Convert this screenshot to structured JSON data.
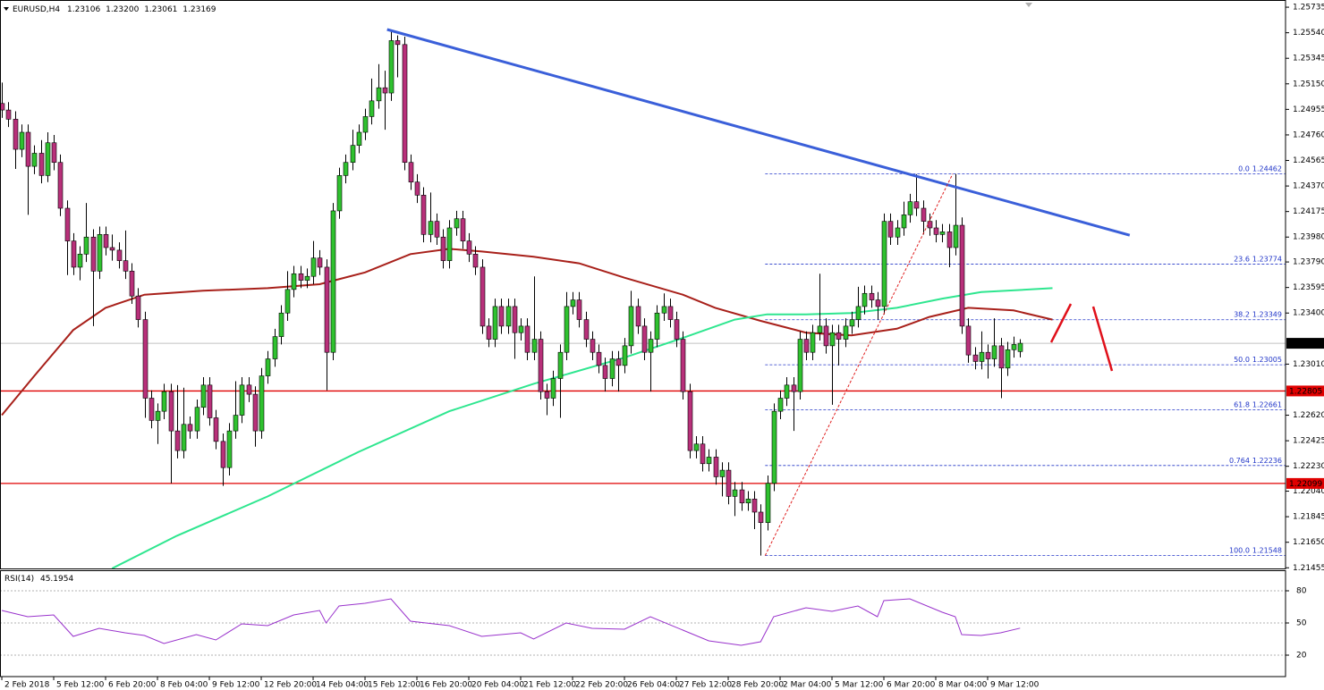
{
  "chart_data": {
    "type": "candlestick",
    "header": [
      "EURUSD,H4",
      "1.23106",
      "1.23200",
      "1.23061",
      "1.23169"
    ],
    "up_color": "#2fc12f",
    "down_color": "#b8307a",
    "xlim": [
      -0.28,
      197.93
    ],
    "ylim": [
      1.2145,
      1.2579
    ],
    "yticks": [
      1.25735,
      {
        "value": 1.2554,
        "label": "1.25540"
      },
      1.25345,
      {
        "value": 1.2515,
        "label": "1.25150"
      },
      1.24955,
      {
        "value": 1.2476,
        "label": "1.24760"
      },
      1.24565,
      {
        "value": 1.2437,
        "label": "1.24370"
      },
      1.24175,
      {
        "value": 1.2398,
        "label": "1.23980"
      },
      {
        "value": 1.2379,
        "label": "1.23790"
      },
      1.23595,
      {
        "value": 1.234,
        "label": "1.23400"
      },
      {
        "value": 1.2301,
        "label": "1.23010"
      },
      {
        "value": 1.2262,
        "label": "1.22620"
      },
      1.22425,
      {
        "value": 1.2223,
        "label": "1.22230"
      },
      {
        "value": 1.2204,
        "label": "1.22040"
      },
      1.21845,
      {
        "value": 1.2165,
        "label": "1.21650"
      },
      1.21455
    ],
    "xticks": [
      {
        "value": 0,
        "label": "2 Feb 2018"
      },
      {
        "value": 8,
        "label": "5 Feb 12:00"
      },
      {
        "value": 16,
        "label": "6 Feb 20:00"
      },
      {
        "value": 24,
        "label": "8 Feb 04:00"
      },
      {
        "value": 32,
        "label": "9 Feb 12:00"
      },
      {
        "value": 40,
        "label": "12 Feb 20:00"
      },
      {
        "value": 48,
        "label": "14 Feb 04:00"
      },
      {
        "value": 56,
        "label": "15 Feb 12:00"
      },
      {
        "value": 64,
        "label": "16 Feb 20:00"
      },
      {
        "value": 72,
        "label": "20 Feb 04:00"
      },
      {
        "value": 80,
        "label": "21 Feb 12:00"
      },
      {
        "value": 88,
        "label": "22 Feb 20:00"
      },
      {
        "value": 96,
        "label": "26 Feb 04:00"
      },
      {
        "value": 104,
        "label": "27 Feb 12:00"
      },
      {
        "value": 112,
        "label": "28 Feb 20:00"
      },
      {
        "value": 120,
        "label": "2 Mar 04:00"
      },
      {
        "value": 128,
        "label": "5 Mar 12:00"
      },
      {
        "value": 136,
        "label": "6 Mar 20:00"
      },
      {
        "value": 144,
        "label": "8 Mar 04:00"
      },
      {
        "value": 152,
        "label": "9 Mar 12:00"
      }
    ],
    "ohlc": [
      [
        1.25,
        1.2516,
        1.2489,
        1.2495
      ],
      [
        1.2495,
        1.2501,
        1.2482,
        1.2488
      ],
      [
        1.2488,
        1.2494,
        1.245,
        1.2465
      ],
      [
        1.2465,
        1.2484,
        1.2459,
        1.2478
      ],
      [
        1.2478,
        1.2484,
        1.2415,
        1.2452
      ],
      [
        1.2452,
        1.2468,
        1.2446,
        1.2462
      ],
      [
        1.2462,
        1.2472,
        1.2439,
        1.2445
      ],
      [
        1.2445,
        1.2478,
        1.244,
        1.247
      ],
      [
        1.247,
        1.2476,
        1.2449,
        1.2455
      ],
      [
        1.2455,
        1.2461,
        1.2414,
        1.242
      ],
      [
        1.242,
        1.2426,
        1.2369,
        1.2395
      ],
      [
        1.2395,
        1.2401,
        1.2369,
        1.2375
      ],
      [
        1.2375,
        1.2391,
        1.2365,
        1.2385
      ],
      [
        1.2385,
        1.2424,
        1.2379,
        1.2398
      ],
      [
        1.2398,
        1.2404,
        1.233,
        1.2372
      ],
      [
        1.2372,
        1.2406,
        1.2366,
        1.24
      ],
      [
        1.24,
        1.2406,
        1.2384,
        1.239
      ],
      [
        1.239,
        1.24,
        1.238,
        1.2388
      ],
      [
        1.2388,
        1.2394,
        1.2374,
        1.238
      ],
      [
        1.238,
        1.2403,
        1.2366,
        1.2372
      ],
      [
        1.2372,
        1.2378,
        1.2347,
        1.2353
      ],
      [
        1.2353,
        1.2359,
        1.2329,
        1.2335
      ],
      [
        1.2335,
        1.2341,
        1.226,
        1.2275
      ],
      [
        1.2275,
        1.2281,
        1.2252,
        1.2258
      ],
      [
        1.2258,
        1.2271,
        1.224,
        1.2265
      ],
      [
        1.2265,
        1.2286,
        1.2259,
        1.228
      ],
      [
        1.228,
        1.2286,
        1.221,
        1.225
      ],
      [
        1.225,
        1.2285,
        1.2229,
        1.2235
      ],
      [
        1.2235,
        1.2283,
        1.2229,
        1.2255
      ],
      [
        1.2255,
        1.2261,
        1.2244,
        1.225
      ],
      [
        1.225,
        1.2274,
        1.2244,
        1.2268
      ],
      [
        1.2268,
        1.2291,
        1.2262,
        1.2285
      ],
      [
        1.2285,
        1.2291,
        1.2254,
        1.226
      ],
      [
        1.226,
        1.2266,
        1.2236,
        1.2242
      ],
      [
        1.2242,
        1.2248,
        1.2208,
        1.2222
      ],
      [
        1.2222,
        1.2256,
        1.2216,
        1.225
      ],
      [
        1.225,
        1.2288,
        1.2244,
        1.2262
      ],
      [
        1.2262,
        1.2291,
        1.2256,
        1.2285
      ],
      [
        1.2285,
        1.2291,
        1.2272,
        1.2278
      ],
      [
        1.2278,
        1.2284,
        1.2238,
        1.225
      ],
      [
        1.225,
        1.2298,
        1.2244,
        1.2292
      ],
      [
        1.2292,
        1.2311,
        1.2286,
        1.2305
      ],
      [
        1.2305,
        1.2328,
        1.2299,
        1.2322
      ],
      [
        1.2322,
        1.2346,
        1.2316,
        1.234
      ],
      [
        1.234,
        1.2372,
        1.2334,
        1.2358
      ],
      [
        1.2358,
        1.2376,
        1.2352,
        1.237
      ],
      [
        1.237,
        1.2376,
        1.2359,
        1.2365
      ],
      [
        1.2365,
        1.2374,
        1.2359,
        1.2368
      ],
      [
        1.2368,
        1.2395,
        1.2362,
        1.2382
      ],
      [
        1.2382,
        1.2388,
        1.2369,
        1.2375
      ],
      [
        1.2375,
        1.2381,
        1.2281,
        1.231
      ],
      [
        1.231,
        1.2424,
        1.2304,
        1.2418
      ],
      [
        1.2418,
        1.2451,
        1.2412,
        1.2445
      ],
      [
        1.2445,
        1.2461,
        1.2439,
        1.2455
      ],
      [
        1.2455,
        1.248,
        1.2449,
        1.2468
      ],
      [
        1.2468,
        1.2484,
        1.2462,
        1.2478
      ],
      [
        1.2478,
        1.2496,
        1.2472,
        1.249
      ],
      [
        1.249,
        1.2519,
        1.2484,
        1.2502
      ],
      [
        1.2502,
        1.253,
        1.2496,
        1.2512
      ],
      [
        1.2512,
        1.2525,
        1.248,
        1.2508
      ],
      [
        1.2508,
        1.2556,
        1.2502,
        1.2548
      ],
      [
        1.2548,
        1.2552,
        1.252,
        1.2545
      ],
      [
        1.2545,
        1.2551,
        1.2449,
        1.2455
      ],
      [
        1.2455,
        1.2461,
        1.2434,
        1.244
      ],
      [
        1.244,
        1.2446,
        1.2424,
        1.243
      ],
      [
        1.243,
        1.2436,
        1.2394,
        1.24
      ],
      [
        1.24,
        1.2432,
        1.2394,
        1.241
      ],
      [
        1.241,
        1.2416,
        1.2392,
        1.2398
      ],
      [
        1.2398,
        1.2404,
        1.2374,
        1.238
      ],
      [
        1.238,
        1.2411,
        1.2374,
        1.2405
      ],
      [
        1.2405,
        1.2418,
        1.2399,
        1.2412
      ],
      [
        1.2412,
        1.2418,
        1.2389,
        1.2395
      ],
      [
        1.2395,
        1.2401,
        1.2379,
        1.2385
      ],
      [
        1.2385,
        1.2391,
        1.2369,
        1.2375
      ],
      [
        1.2375,
        1.2381,
        1.2324,
        1.233
      ],
      [
        1.233,
        1.2336,
        1.2314,
        1.232
      ],
      [
        1.232,
        1.2351,
        1.2314,
        1.2345
      ],
      [
        1.2345,
        1.2351,
        1.2324,
        1.233
      ],
      [
        1.233,
        1.2351,
        1.2324,
        1.2345
      ],
      [
        1.2345,
        1.2351,
        1.2305,
        1.2325
      ],
      [
        1.2325,
        1.2336,
        1.2319,
        1.233
      ],
      [
        1.233,
        1.2336,
        1.2304,
        1.231
      ],
      [
        1.231,
        1.2368,
        1.2304,
        1.232
      ],
      [
        1.232,
        1.2326,
        1.2274,
        1.228
      ],
      [
        1.228,
        1.2286,
        1.2262,
        1.2275
      ],
      [
        1.2275,
        1.2296,
        1.2269,
        1.229
      ],
      [
        1.229,
        1.2316,
        1.226,
        1.231
      ],
      [
        1.231,
        1.2356,
        1.2304,
        1.2345
      ],
      [
        1.2345,
        1.2356,
        1.2339,
        1.235
      ],
      [
        1.235,
        1.2356,
        1.2329,
        1.2335
      ],
      [
        1.2335,
        1.2341,
        1.2314,
        1.232
      ],
      [
        1.232,
        1.2326,
        1.2304,
        1.231
      ],
      [
        1.231,
        1.2316,
        1.2294,
        1.23
      ],
      [
        1.23,
        1.2306,
        1.228,
        1.229
      ],
      [
        1.229,
        1.2311,
        1.2284,
        1.2305
      ],
      [
        1.2305,
        1.2311,
        1.228,
        1.23
      ],
      [
        1.23,
        1.2321,
        1.2294,
        1.2315
      ],
      [
        1.2315,
        1.2357,
        1.2309,
        1.2345
      ],
      [
        1.2345,
        1.2351,
        1.2324,
        1.233
      ],
      [
        1.233,
        1.2336,
        1.2304,
        1.231
      ],
      [
        1.231,
        1.2326,
        1.228,
        1.232
      ],
      [
        1.232,
        1.2346,
        1.2314,
        1.234
      ],
      [
        1.234,
        1.2355,
        1.2334,
        1.2345
      ],
      [
        1.2345,
        1.2351,
        1.2329,
        1.2335
      ],
      [
        1.2335,
        1.2341,
        1.2314,
        1.232
      ],
      [
        1.232,
        1.2326,
        1.2274,
        1.228
      ],
      [
        1.228,
        1.2286,
        1.2229,
        1.2235
      ],
      [
        1.2235,
        1.2246,
        1.2229,
        1.224
      ],
      [
        1.224,
        1.2246,
        1.2219,
        1.2225
      ],
      [
        1.2225,
        1.2236,
        1.2219,
        1.223
      ],
      [
        1.223,
        1.2236,
        1.2209,
        1.2215
      ],
      [
        1.2215,
        1.2226,
        1.22,
        1.222
      ],
      [
        1.222,
        1.2226,
        1.2194,
        1.22
      ],
      [
        1.22,
        1.2211,
        1.2185,
        1.2205
      ],
      [
        1.2205,
        1.2211,
        1.2189,
        1.2195
      ],
      [
        1.2195,
        1.2204,
        1.2189,
        1.2198
      ],
      [
        1.2198,
        1.2204,
        1.2175,
        1.2188
      ],
      [
        1.2188,
        1.2194,
        1.21548,
        1.218
      ],
      [
        1.218,
        1.2216,
        1.2174,
        1.221
      ],
      [
        1.221,
        1.2271,
        1.2204,
        1.2265
      ],
      [
        1.2265,
        1.2281,
        1.2259,
        1.2275
      ],
      [
        1.2275,
        1.2291,
        1.2269,
        1.2285
      ],
      [
        1.2285,
        1.2291,
        1.225,
        1.228
      ],
      [
        1.228,
        1.2326,
        1.2274,
        1.232
      ],
      [
        1.232,
        1.2326,
        1.2304,
        1.231
      ],
      [
        1.231,
        1.2331,
        1.2304,
        1.2325
      ],
      [
        1.2325,
        1.237,
        1.2319,
        1.233
      ],
      [
        1.233,
        1.2336,
        1.2309,
        1.2315
      ],
      [
        1.2315,
        1.2331,
        1.227,
        1.2325
      ],
      [
        1.2325,
        1.2331,
        1.23,
        1.232
      ],
      [
        1.232,
        1.2336,
        1.2314,
        1.233
      ],
      [
        1.233,
        1.2341,
        1.2324,
        1.2335
      ],
      [
        1.2335,
        1.236,
        1.2329,
        1.2345
      ],
      [
        1.2345,
        1.2361,
        1.2339,
        1.2355
      ],
      [
        1.2355,
        1.2361,
        1.2344,
        1.235
      ],
      [
        1.235,
        1.2356,
        1.2335,
        1.2345
      ],
      [
        1.2345,
        1.2416,
        1.2339,
        1.241
      ],
      [
        1.241,
        1.2416,
        1.2392,
        1.2398
      ],
      [
        1.2398,
        1.2411,
        1.2392,
        1.2405
      ],
      [
        1.2405,
        1.2425,
        1.2399,
        1.2415
      ],
      [
        1.2415,
        1.2431,
        1.2409,
        1.2425
      ],
      [
        1.2425,
        1.2446,
        1.2414,
        1.242
      ],
      [
        1.242,
        1.2426,
        1.24,
        1.241
      ],
      [
        1.241,
        1.2416,
        1.2399,
        1.2405
      ],
      [
        1.2405,
        1.2411,
        1.2394,
        1.24
      ],
      [
        1.24,
        1.2408,
        1.2394,
        1.2402
      ],
      [
        1.2402,
        1.2408,
        1.2375,
        1.239
      ],
      [
        1.239,
        1.24462,
        1.2384,
        1.2407
      ],
      [
        1.2407,
        1.2413,
        1.2324,
        1.233
      ],
      [
        1.233,
        1.2336,
        1.2302,
        1.2308
      ],
      [
        1.2308,
        1.2314,
        1.2297,
        1.2303
      ],
      [
        1.2303,
        1.2326,
        1.2297,
        1.231
      ],
      [
        1.231,
        1.2316,
        1.229,
        1.2305
      ],
      [
        1.2305,
        1.2336,
        1.2299,
        1.2315
      ],
      [
        1.2315,
        1.2321,
        1.2275,
        1.2298
      ],
      [
        1.2298,
        1.2318,
        1.2292,
        1.2312
      ],
      [
        1.2312,
        1.2322,
        1.2306,
        1.2316
      ],
      [
        1.23106,
        1.232,
        1.23061,
        1.23169
      ]
    ],
    "moving_averages": [
      {
        "color": "#a8201a",
        "x": [
          0,
          5,
          11,
          16,
          22,
          31,
          41,
          49,
          56,
          63,
          69,
          74,
          82,
          89,
          96,
          105,
          110,
          117,
          124,
          131,
          138,
          143,
          149,
          156,
          162
        ],
        "values": [
          1.2262,
          1.2292,
          1.2327,
          1.2344,
          1.2354,
          1.2357,
          1.2359,
          1.2362,
          1.2371,
          1.2385,
          1.2389,
          1.2387,
          1.2383,
          1.2378,
          1.2367,
          1.2354,
          1.2344,
          1.2334,
          1.2325,
          1.2323,
          1.2328,
          1.2337,
          1.2344,
          1.2342,
          1.2335
        ]
      },
      {
        "color": "#2ee68f",
        "x": [
          17,
          27,
          41,
          55,
          69,
          82,
          96,
          105,
          113,
          118,
          124,
          131,
          138,
          145,
          151,
          162
        ],
        "values": [
          1.2145,
          1.217,
          1.22,
          1.2234,
          1.2265,
          1.2286,
          1.2306,
          1.2321,
          1.2335,
          1.2339,
          1.2339,
          1.234,
          1.2344,
          1.2351,
          1.2356,
          1.2359
        ]
      }
    ],
    "trendline": {
      "color": "#3a5fd9",
      "x": [
        59.4,
        173.9
      ],
      "values": [
        1.25565,
        1.23994
      ]
    },
    "fib_line": {
      "color": "#e02020",
      "x": [
        117.7,
        146.6
      ],
      "values": [
        1.21548,
        1.24462
      ]
    },
    "fibonacci": {
      "color": "#2035c8",
      "x_start": 117.7,
      "levels": [
        {
          "level": "0.0",
          "price": 1.24462
        },
        {
          "level": "23.6",
          "price": 1.23774
        },
        {
          "level": "38.2",
          "price": 1.23349
        },
        {
          "level": "50.0",
          "price": 1.23005
        },
        {
          "level": "61.8",
          "price": 1.22661
        },
        {
          "level": "0.764",
          "price": 1.22236
        },
        {
          "level": "100.0",
          "price": 1.21548
        }
      ]
    },
    "horizontal_lines": [
      {
        "price": 1.22805,
        "color": "#e00000"
      },
      {
        "price": 1.22099,
        "color": "#e00000"
      }
    ],
    "current_price": 1.23169,
    "rsi": {
      "name": "RSI(14)",
      "value": 45.1954,
      "color": "#9932cc",
      "ylim": [
        0,
        100
      ],
      "yticks": [
        20,
        50,
        80
      ],
      "x": [
        0,
        4,
        8,
        11,
        15,
        19,
        22,
        25,
        30,
        33,
        37,
        41,
        45,
        49,
        50,
        52,
        56,
        60,
        63,
        69,
        74,
        80,
        82,
        87,
        91,
        96,
        100,
        105,
        109,
        114,
        117,
        119,
        124,
        128,
        132,
        135,
        136,
        140,
        145,
        147,
        148,
        151,
        154,
        157
      ],
      "values": [
        61.7,
        55.8,
        57.5,
        37.5,
        45,
        40.8,
        38.3,
        30.8,
        39.2,
        34.2,
        49.2,
        47.5,
        57.5,
        61.7,
        50,
        65.8,
        68.3,
        72.5,
        51.7,
        47.5,
        37.5,
        40.8,
        35,
        50,
        45,
        44.2,
        55.8,
        43.3,
        33.3,
        29.2,
        32.5,
        55.8,
        64.2,
        60.8,
        65.8,
        55.8,
        70.8,
        72.5,
        60,
        55.8,
        39.2,
        38.3,
        40.8,
        45.1954
      ]
    }
  }
}
